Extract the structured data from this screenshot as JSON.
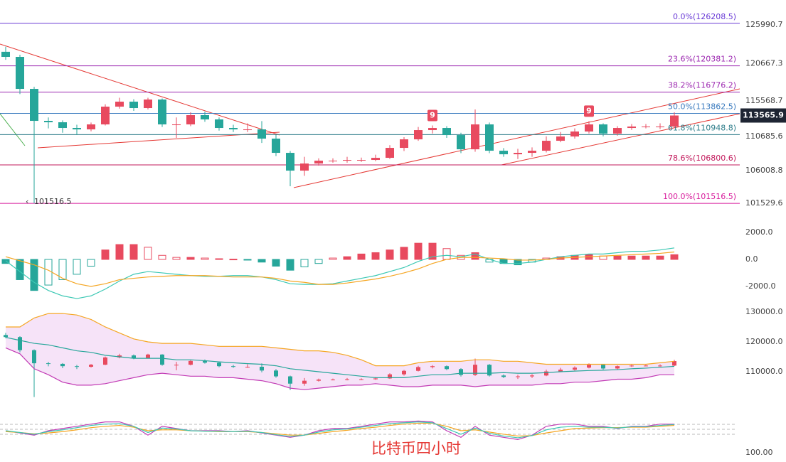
{
  "chart_data": [
    {
      "type": "candlestick",
      "up_color": "#e84a5f",
      "down_color": "#26a69a",
      "ylim": [
        100170,
        129400
      ],
      "yticks": [
        125990.7,
        120667.3,
        115568.7,
        110685.6,
        106008.8,
        101529.6
      ],
      "last_price": 113565.9,
      "low_marker": 101516.5,
      "td_labels": [
        "9",
        "9"
      ],
      "watermark": "比特币四小时",
      "fib_levels": [
        {
          "value": 126208.5,
          "label": "0.0%(126208.5)",
          "color": "#6a3bd6"
        },
        {
          "value": 120381.2,
          "label": "23.6%(120381.2)",
          "color": "#9c27b0"
        },
        {
          "value": 116776.2,
          "label": "38.2%(116776.2)",
          "color": "#9c27b0"
        },
        {
          "value": 113862.5,
          "label": "50.0%(113862.5)",
          "color": "#3b7bbf"
        },
        {
          "value": 110948.8,
          "label": "61.8%(110948.8)",
          "color": "#2e7d8a"
        },
        {
          "value": 106800.6,
          "label": "78.6%(106800.6)",
          "color": "#c2185b"
        },
        {
          "value": 101516.5,
          "label": "100.0%(101516.5)",
          "color": "#d81b9c"
        }
      ],
      "candles": [
        [
          122300,
          123000,
          121200,
          121605
        ],
        [
          121605,
          121900,
          116500,
          117219
        ],
        [
          117219,
          117500,
          101516.5,
          112833
        ],
        [
          112833,
          113300,
          111800,
          112639
        ],
        [
          112639,
          112900,
          111200,
          111859
        ],
        [
          111859,
          112300,
          110900,
          111664
        ],
        [
          111664,
          112600,
          111400,
          112346
        ],
        [
          112346,
          115100,
          112200,
          114782
        ],
        [
          114782,
          116000,
          114500,
          115465
        ],
        [
          115465,
          115800,
          114200,
          114588
        ],
        [
          114588,
          116000,
          114400,
          115757
        ],
        [
          115757,
          115900,
          112000,
          112346
        ],
        [
          112346,
          113300,
          110500,
          112346
        ],
        [
          112346,
          114000,
          112100,
          113614
        ],
        [
          113614,
          114100,
          112700,
          113029
        ],
        [
          113029,
          113300,
          111500,
          111859
        ],
        [
          111859,
          112300,
          111300,
          111664
        ],
        [
          111664,
          112500,
          111300,
          111664
        ],
        [
          111664,
          112800,
          109800,
          110397
        ],
        [
          110397,
          110900,
          108000,
          108448
        ],
        [
          108448,
          108700,
          103870,
          106012
        ],
        [
          106012,
          107900,
          105300,
          106986
        ],
        [
          106986,
          107700,
          106700,
          107376
        ],
        [
          107376,
          107700,
          107100,
          107376
        ],
        [
          107376,
          107900,
          107100,
          107474
        ],
        [
          107474,
          107800,
          107200,
          107474
        ],
        [
          107474,
          108200,
          107300,
          107766
        ],
        [
          107766,
          109500,
          107600,
          109130
        ],
        [
          109130,
          110600,
          108700,
          110300
        ],
        [
          110300,
          112000,
          110100,
          111567
        ],
        [
          111567,
          112200,
          111100,
          111859
        ],
        [
          111859,
          112100,
          110500,
          110884
        ],
        [
          110884,
          111200,
          108400,
          108935
        ],
        [
          108935,
          114400,
          108600,
          112346
        ],
        [
          112346,
          112600,
          108400,
          108740
        ],
        [
          108740,
          109100,
          107900,
          108253
        ],
        [
          108253,
          109000,
          107600,
          108448
        ],
        [
          108448,
          109200,
          107900,
          108740
        ],
        [
          108740,
          110700,
          108500,
          110105
        ],
        [
          110105,
          111300,
          109900,
          110690
        ],
        [
          110690,
          111800,
          110400,
          111372
        ],
        [
          111372,
          112800,
          111100,
          112346
        ],
        [
          112346,
          112500,
          110700,
          111080
        ],
        [
          111080,
          112100,
          110800,
          111859
        ],
        [
          111859,
          112400,
          111600,
          112054
        ],
        [
          112054,
          112400,
          111800,
          112054
        ],
        [
          112054,
          112500,
          111700,
          112054
        ],
        [
          112054,
          114000,
          111900,
          113565.9
        ]
      ]
    },
    {
      "type": "macd",
      "ylim": [
        -3160,
        2630
      ],
      "yticks": [
        {
          "value": 2000,
          "label": "2000.0"
        },
        {
          "value": 0,
          "label": "0.0"
        },
        {
          "value": -2000,
          "label": "-2000.0"
        }
      ],
      "pos_color": "#e84a5f",
      "neg_color": "#26a69a",
      "values": [
        -300,
        -1500,
        -2300,
        -1900,
        -1500,
        -1100,
        -500,
        700,
        1100,
        1100,
        900,
        300,
        150,
        150,
        100,
        50,
        20,
        -50,
        -200,
        -500,
        -800,
        -550,
        -300,
        100,
        200,
        400,
        500,
        700,
        900,
        1200,
        1200,
        800,
        300,
        500,
        -200,
        -300,
        -400,
        -200,
        100,
        200,
        300,
        350,
        250,
        250,
        250,
        250,
        250,
        350
      ],
      "series": [
        {
          "color": "#3cc8b4",
          "values": [
            -100,
            -900,
            -1700,
            -2300,
            -2700,
            -2900,
            -2700,
            -2200,
            -1600,
            -1100,
            -900,
            -1000,
            -1100,
            -1200,
            -1250,
            -1250,
            -1200,
            -1200,
            -1300,
            -1500,
            -1800,
            -1850,
            -1850,
            -1800,
            -1600,
            -1400,
            -1200,
            -900,
            -600,
            -150,
            200,
            300,
            200,
            400,
            0,
            -300,
            -300,
            -200,
            0,
            200,
            300,
            400,
            400,
            500,
            600,
            600,
            700,
            850
          ]
        },
        {
          "color": "#f5a623",
          "values": [
            200,
            -100,
            -400,
            -800,
            -1400,
            -1800,
            -2000,
            -1800,
            -1500,
            -1400,
            -1300,
            -1250,
            -1200,
            -1200,
            -1200,
            -1250,
            -1300,
            -1300,
            -1300,
            -1400,
            -1600,
            -1700,
            -1850,
            -1850,
            -1750,
            -1600,
            -1450,
            -1250,
            -1000,
            -700,
            -300,
            0,
            150,
            150,
            100,
            50,
            -50,
            -50,
            0,
            100,
            150,
            200,
            250,
            300,
            350,
            400,
            450,
            550
          ]
        }
      ]
    },
    {
      "type": "bollinger",
      "ylim": [
        100000,
        132140
      ],
      "yticks": [
        {
          "value": 130000,
          "label": "130000.0"
        },
        {
          "value": 120000,
          "label": "120000.0"
        },
        {
          "value": 110000,
          "label": "110000.0"
        }
      ],
      "band_fill": "#f6e3f8",
      "series": [
        {
          "color": "#f5a623",
          "values": [
            125000,
            125000,
            128000,
            129500,
            129500,
            129000,
            127500,
            125000,
            123000,
            121000,
            120000,
            119500,
            119500,
            119500,
            119000,
            118500,
            118500,
            118500,
            118500,
            118000,
            117500,
            117000,
            117000,
            116500,
            115500,
            114000,
            112000,
            112000,
            112000,
            113000,
            113500,
            113500,
            113500,
            114000,
            114000,
            113500,
            113500,
            113000,
            112500,
            112500,
            112500,
            112500,
            112500,
            112500,
            112500,
            112500,
            113000,
            113500
          ]
        },
        {
          "color": "#26a69a",
          "values": [
            121500,
            120500,
            119500,
            119000,
            118000,
            117000,
            116500,
            115500,
            115000,
            114500,
            114500,
            114500,
            114000,
            114000,
            113700,
            113300,
            113000,
            112700,
            112500,
            112000,
            111000,
            110500,
            110000,
            109500,
            109000,
            108500,
            108000,
            108000,
            108000,
            108500,
            109000,
            109000,
            109500,
            109500,
            109500,
            109700,
            109500,
            109500,
            109700,
            110000,
            110200,
            110400,
            110500,
            110700,
            111000,
            111200,
            111500,
            111800
          ]
        },
        {
          "color": "#c23bb5",
          "values": [
            118000,
            116000,
            111000,
            109000,
            106500,
            105500,
            105500,
            106000,
            107000,
            108000,
            109000,
            109500,
            109000,
            108500,
            108500,
            108000,
            108000,
            107500,
            107000,
            106000,
            104500,
            104000,
            104500,
            105000,
            105500,
            105500,
            106000,
            105500,
            105000,
            105000,
            105500,
            105500,
            105500,
            105000,
            105500,
            105500,
            105500,
            105500,
            106000,
            106000,
            106500,
            106500,
            107000,
            107500,
            107500,
            108000,
            109000,
            109000
          ]
        }
      ]
    },
    {
      "type": "rsi",
      "ylim": [
        100,
        200
      ],
      "yticks": [
        {
          "value": 100,
          "label": "100.00"
        }
      ],
      "series": [
        {
          "color": "#c23bb5",
          "values": [
            150,
            145,
            140,
            150,
            155,
            160,
            165,
            170,
            170,
            160,
            140,
            160,
            155,
            150,
            150,
            150,
            148,
            150,
            145,
            140,
            135,
            140,
            150,
            155,
            155,
            160,
            165,
            170,
            170,
            172,
            170,
            150,
            135,
            160,
            140,
            135,
            130,
            140,
            160,
            165,
            165,
            160,
            160,
            155,
            160,
            160,
            165,
            165
          ]
        },
        {
          "color": "#f5a623",
          "values": [
            148,
            146,
            143,
            145,
            148,
            152,
            157,
            160,
            162,
            158,
            150,
            152,
            152,
            150,
            149,
            148,
            148,
            148,
            146,
            143,
            140,
            140,
            144,
            148,
            151,
            155,
            158,
            162,
            165,
            167,
            167,
            160,
            150,
            152,
            147,
            142,
            138,
            139,
            145,
            150,
            155,
            156,
            157,
            157,
            158,
            158,
            160,
            162
          ]
        },
        {
          "color": "#3cc8b4",
          "values": [
            150,
            146,
            142,
            148,
            152,
            157,
            162,
            165,
            166,
            160,
            146,
            156,
            154,
            150,
            149,
            149,
            148,
            149,
            146,
            141,
            137,
            140,
            147,
            152,
            154,
            158,
            162,
            166,
            168,
            170,
            168,
            155,
            142,
            156,
            144,
            138,
            134,
            139,
            152,
            158,
            160,
            158,
            158,
            156,
            159,
            159,
            162,
            164
          ]
        }
      ]
    }
  ]
}
